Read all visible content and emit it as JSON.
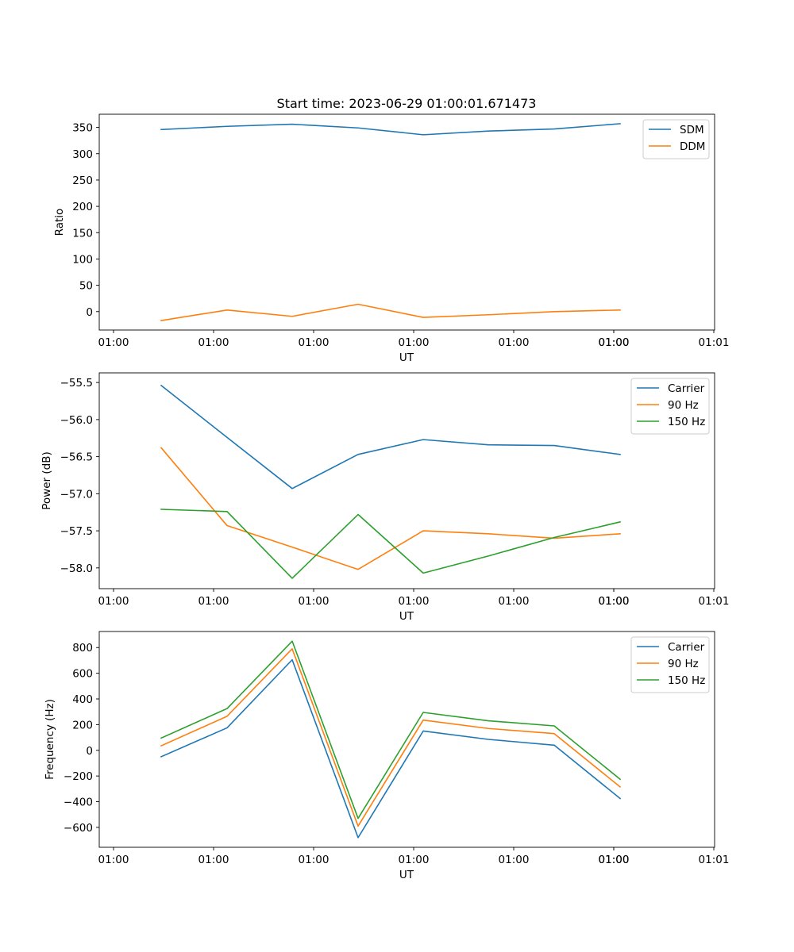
{
  "figure_title": "Start time: 2023-06-29 01:00:01.671473",
  "chart_data": [
    {
      "type": "line",
      "ylabel": "Ratio",
      "xlabel": "UT",
      "x_tick_labels": [
        "01:00",
        "01:00",
        "01:00",
        "01:00",
        "01:00",
        "01:00",
        "01:00",
        "01:01"
      ],
      "y_ticks": [
        0,
        50,
        100,
        150,
        200,
        250,
        300,
        350
      ],
      "y_tick_labels": [
        "0",
        "50",
        "100",
        "150",
        "200",
        "250",
        "300",
        "350"
      ],
      "ylim": [
        -35,
        375
      ],
      "legend_position": "top-right",
      "grid": false,
      "series": [
        {
          "name": "SDM",
          "color": "#1f77b4",
          "values": [
            346,
            352,
            356,
            349,
            336,
            343,
            347,
            357
          ]
        },
        {
          "name": "DDM",
          "color": "#ff7f0e",
          "values": [
            -17,
            3,
            -9,
            14,
            -11,
            -6,
            0,
            3
          ]
        }
      ]
    },
    {
      "type": "line",
      "ylabel": "Power (dB)",
      "xlabel": "UT",
      "x_tick_labels": [
        "01:00",
        "01:00",
        "01:00",
        "01:00",
        "01:00",
        "01:00",
        "01:00",
        "01:01"
      ],
      "y_ticks": [
        -58.0,
        -57.5,
        -57.0,
        -56.5,
        -56.0,
        -55.5
      ],
      "y_tick_labels": [
        "−58.0",
        "−57.5",
        "−57.0",
        "−56.5",
        "−56.0",
        "−55.5"
      ],
      "ylim": [
        -58.28,
        -55.37
      ],
      "legend_position": "top-right",
      "grid": false,
      "series": [
        {
          "name": "Carrier",
          "color": "#1f77b4",
          "values": [
            -55.54,
            -56.24,
            -56.93,
            -56.47,
            -56.27,
            -56.34,
            -56.35,
            -56.47
          ]
        },
        {
          "name": "90 Hz",
          "color": "#ff7f0e",
          "values": [
            -56.38,
            -57.43,
            -57.72,
            -58.02,
            -57.5,
            -57.54,
            -57.6,
            -57.54
          ]
        },
        {
          "name": "150 Hz",
          "color": "#2ca02c",
          "values": [
            -57.21,
            -57.24,
            -58.14,
            -57.28,
            -58.07,
            -57.84,
            -57.59,
            -57.38
          ]
        }
      ]
    },
    {
      "type": "line",
      "ylabel": "Frequency (Hz)",
      "xlabel": "UT",
      "x_tick_labels": [
        "01:00",
        "01:00",
        "01:00",
        "01:00",
        "01:00",
        "01:00",
        "01:00",
        "01:01"
      ],
      "y_ticks": [
        -600,
        -400,
        -200,
        0,
        200,
        400,
        600,
        800
      ],
      "y_tick_labels": [
        "−600",
        "−400",
        "−200",
        "0",
        "200",
        "400",
        "600",
        "800"
      ],
      "ylim": [
        -755,
        925
      ],
      "legend_position": "top-right",
      "grid": false,
      "series": [
        {
          "name": "Carrier",
          "color": "#1f77b4",
          "values": [
            -50,
            175,
            705,
            -680,
            150,
            85,
            40,
            -375
          ]
        },
        {
          "name": "90 Hz",
          "color": "#ff7f0e",
          "values": [
            35,
            265,
            790,
            -590,
            235,
            170,
            130,
            -285
          ]
        },
        {
          "name": "150 Hz",
          "color": "#2ca02c",
          "values": [
            95,
            325,
            850,
            -530,
            295,
            230,
            190,
            -225
          ]
        }
      ]
    }
  ]
}
